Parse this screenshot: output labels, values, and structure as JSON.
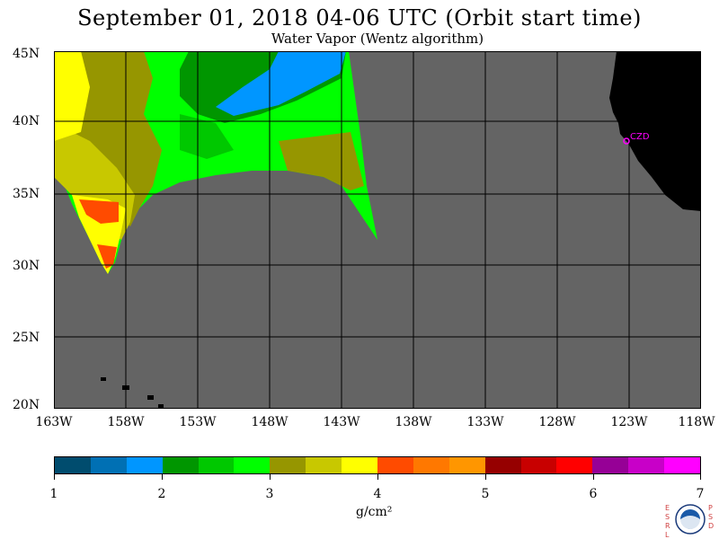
{
  "title": "September 01, 2018  04-06 UTC  (Orbit start time)",
  "subtitle": "Water Vapor (Wentz algorithm)",
  "map": {
    "lat_labels": [
      "45N",
      "40N",
      "35N",
      "30N",
      "25N",
      "20N"
    ],
    "lon_labels": [
      "163W",
      "158W",
      "153W",
      "148W",
      "143W",
      "138W",
      "133W",
      "128W",
      "123W",
      "118W"
    ],
    "station_label": "CZD",
    "colors": {
      "no_data": "#646464",
      "land": "#000000",
      "grid": "#000000",
      "station": "#ff00ff"
    }
  },
  "colorbar": {
    "colors": [
      "#004c6e",
      "#0070b4",
      "#0096ff",
      "#009600",
      "#00c800",
      "#00ff00",
      "#969600",
      "#c8c800",
      "#ffff00",
      "#ff4b00",
      "#ff7800",
      "#ff9600",
      "#960000",
      "#c80000",
      "#ff0000",
      "#960096",
      "#c800c8",
      "#ff00ff"
    ],
    "tick_labels": [
      "1",
      "2",
      "3",
      "4",
      "5",
      "6",
      "7"
    ],
    "units": "g/cm²"
  },
  "logo": {
    "letters_left": "ESRL",
    "letters_right": "PSD",
    "name": "noaa-logo"
  }
}
